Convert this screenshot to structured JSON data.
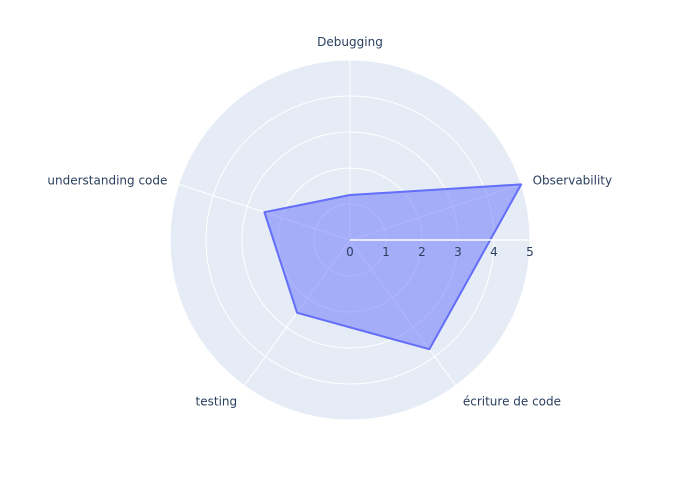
{
  "chart_data": {
    "type": "radar",
    "categories": [
      "Debugging",
      "Observability",
      "écriture de code",
      "testing",
      "understanding code"
    ],
    "series": [
      {
        "values": [
          1.25,
          5,
          3.75,
          2.5,
          2.5
        ],
        "color": "#636efa",
        "fill": "rgba(99,110,250,0.5)"
      }
    ],
    "radial_range": [
      0,
      5
    ],
    "radial_ticks": [
      "0",
      "1",
      "2",
      "3",
      "4",
      "5"
    ],
    "radial_tick_values": [
      0,
      1,
      2,
      3,
      4,
      5
    ],
    "background_color": "#e5ecf6",
    "grid_color": "#ffffff",
    "grid": true,
    "legend": "none"
  }
}
